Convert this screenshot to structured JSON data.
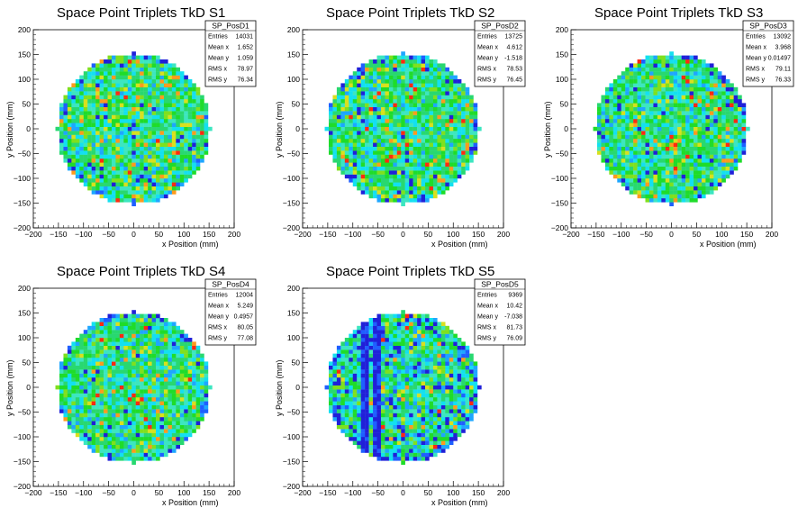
{
  "chart_data": [
    {
      "type": "heatmap",
      "title": "Space Point Triplets TkD S1",
      "xlabel": "x Position (mm)",
      "ylabel": "y Position (mm)",
      "xlim": [
        -200,
        200
      ],
      "ylim": [
        -200,
        200
      ],
      "xticks": [
        "−200",
        "−150",
        "−100",
        "−50",
        "0",
        "50",
        "100",
        "150",
        "200"
      ],
      "yticks": [
        "200",
        "150",
        "100",
        "50",
        "0",
        "−50",
        "−100",
        "−150",
        "−200"
      ],
      "stats": {
        "name": "SP_PosD1",
        "rows": [
          [
            "Entries",
            "14031"
          ],
          [
            "Mean x",
            "1.652"
          ],
          [
            "Mean y",
            "1.059"
          ],
          [
            "RMS x",
            "78.97"
          ],
          [
            "RMS y",
            "76.34"
          ]
        ]
      }
    },
    {
      "type": "heatmap",
      "title": "Space Point Triplets TkD S2",
      "xlabel": "x Position (mm)",
      "ylabel": "y Position (mm)",
      "xlim": [
        -200,
        200
      ],
      "ylim": [
        -200,
        200
      ],
      "xticks": [
        "−200",
        "−150",
        "−100",
        "−50",
        "0",
        "50",
        "100",
        "150",
        "200"
      ],
      "yticks": [
        "200",
        "150",
        "100",
        "50",
        "0",
        "−50",
        "−100",
        "−150",
        "−200"
      ],
      "stats": {
        "name": "SP_PosD2",
        "rows": [
          [
            "Entries",
            "13725"
          ],
          [
            "Mean x",
            "4.612"
          ],
          [
            "Mean y",
            "-1.518"
          ],
          [
            "RMS x",
            "78.53"
          ],
          [
            "RMS y",
            "76.45"
          ]
        ]
      }
    },
    {
      "type": "heatmap",
      "title": "Space Point Triplets TkD S3",
      "xlabel": "x Position (mm)",
      "ylabel": "y Position (mm)",
      "xlim": [
        -200,
        200
      ],
      "ylim": [
        -200,
        200
      ],
      "xticks": [
        "−200",
        "−150",
        "−100",
        "−50",
        "0",
        "50",
        "100",
        "150",
        "200"
      ],
      "yticks": [
        "200",
        "150",
        "100",
        "50",
        "0",
        "−50",
        "−100",
        "−150",
        "−200"
      ],
      "stats": {
        "name": "SP_PosD3",
        "rows": [
          [
            "Entries",
            "13092"
          ],
          [
            "Mean x",
            "3.968"
          ],
          [
            "Mean y",
            "0.01497"
          ],
          [
            "RMS x",
            "79.11"
          ],
          [
            "RMS y",
            "76.33"
          ]
        ]
      }
    },
    {
      "type": "heatmap",
      "title": "Space Point Triplets TkD S4",
      "xlabel": "x Position (mm)",
      "ylabel": "y Position (mm)",
      "xlim": [
        -200,
        200
      ],
      "ylim": [
        -200,
        200
      ],
      "xticks": [
        "−200",
        "−150",
        "−100",
        "−50",
        "0",
        "50",
        "100",
        "150",
        "200"
      ],
      "yticks": [
        "200",
        "150",
        "100",
        "50",
        "0",
        "−50",
        "−100",
        "−150",
        "−200"
      ],
      "stats": {
        "name": "SP_PosD4",
        "rows": [
          [
            "Entries",
            "12004"
          ],
          [
            "Mean x",
            "5.249"
          ],
          [
            "Mean y",
            "0.4957"
          ],
          [
            "RMS x",
            "80.05"
          ],
          [
            "RMS y",
            "77.08"
          ]
        ]
      }
    },
    {
      "type": "heatmap",
      "title": "Space Point Triplets TkD S5",
      "xlabel": "x Position (mm)",
      "ylabel": "y Position (mm)",
      "xlim": [
        -200,
        200
      ],
      "ylim": [
        -200,
        200
      ],
      "xticks": [
        "−200",
        "−150",
        "−100",
        "−50",
        "0",
        "50",
        "100",
        "150",
        "200"
      ],
      "yticks": [
        "200",
        "150",
        "100",
        "50",
        "0",
        "−50",
        "−100",
        "−150",
        "−200"
      ],
      "stats": {
        "name": "SP_PosD5",
        "rows": [
          [
            "Entries",
            "9369"
          ],
          [
            "Mean x",
            "10.42"
          ],
          [
            "Mean y",
            "-7.038"
          ],
          [
            "RMS x",
            "81.73"
          ],
          [
            "RMS y",
            "76.09"
          ]
        ]
      }
    }
  ],
  "colors": {
    "palette": [
      "#2020d8",
      "#1f5fff",
      "#1ea6ff",
      "#13e0f0",
      "#3ce6c0",
      "#28d870",
      "#1fdc2a",
      "#7fe01e",
      "#d8e01e",
      "#ff9a1e",
      "#ff2a10",
      "#c8101a"
    ]
  }
}
